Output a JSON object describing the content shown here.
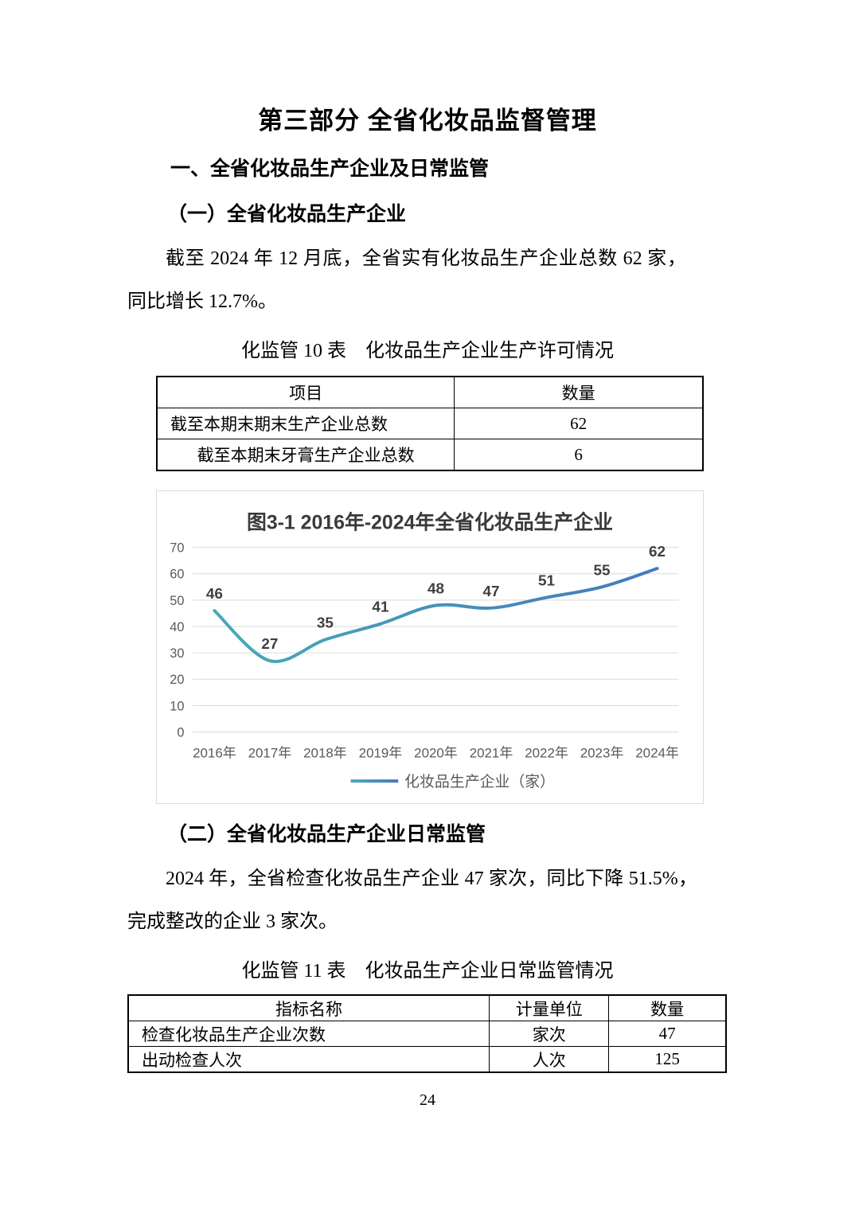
{
  "page": {
    "title": "第三部分 全省化妆品监督管理",
    "page_number": "24"
  },
  "section1": {
    "heading": "一、全省化妆品生产企业及日常监管"
  },
  "sub1": {
    "heading": "（一）全省化妆品生产企业",
    "paragraph": "截至 2024 年 12 月底，全省实有化妆品生产企业总数 62 家，同比增长 12.7%。"
  },
  "table10": {
    "caption": "化监管 10 表　化妆品生产企业生产许可情况",
    "headers": [
      "项目",
      "数量"
    ],
    "rows": [
      {
        "cells": [
          "截至本期末期末生产企业总数",
          "62"
        ],
        "align": "left"
      },
      {
        "cells": [
          "截至本期末牙膏生产企业总数",
          "6"
        ],
        "align": "center"
      }
    ]
  },
  "chart_data": {
    "type": "line",
    "title": "图3-1 2016年-2024年全省化妆品生产企业",
    "categories": [
      "2016年",
      "2017年",
      "2018年",
      "2019年",
      "2020年",
      "2021年",
      "2022年",
      "2023年",
      "2024年"
    ],
    "values": [
      46,
      27,
      35,
      41,
      48,
      47,
      51,
      55,
      62
    ],
    "series_name": "化妆品生产企业（家）",
    "legend": [
      "化妆品生产企业（家）"
    ],
    "legend_position": "bottom",
    "ylim": [
      0,
      70
    ],
    "ytick_step": 10,
    "grid": true,
    "line_color_start": "#47AAB8",
    "line_color_end": "#4679BD",
    "grid_color": "#dadada",
    "tick_color": "#595959"
  },
  "sub2": {
    "heading": "（二）全省化妆品生产企业日常监管",
    "paragraph": "2024 年，全省检查化妆品生产企业 47 家次，同比下降 51.5%，完成整改的企业 3 家次。"
  },
  "table11": {
    "caption": "化监管 11 表　化妆品生产企业日常监管情况",
    "headers": [
      "指标名称",
      "计量单位",
      "数量"
    ],
    "rows": [
      {
        "cells": [
          "检查化妆品生产企业次数",
          "家次",
          "47"
        ],
        "align": "left"
      },
      {
        "cells": [
          "出动检查人次",
          "人次",
          "125"
        ],
        "align": "left"
      }
    ]
  }
}
